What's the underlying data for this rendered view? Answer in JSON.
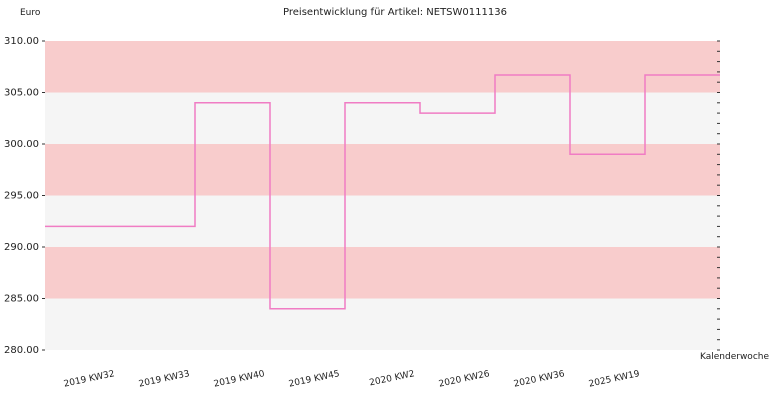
{
  "chart_data": {
    "type": "step-line",
    "title": "Preisentwicklung für Artikel: NETSW0111136",
    "y_label": "Euro",
    "x_label": "Kalenderwoche",
    "categories": [
      "2019 KW32",
      "2019 KW33",
      "2019 KW40",
      "2019 KW45",
      "2020 KW2",
      "2020 KW26",
      "2020 KW36",
      "2025 KW19"
    ],
    "values": [
      292,
      304,
      284,
      304,
      303,
      306.7,
      299,
      306.7
    ],
    "color": "#f07cc4",
    "band_colors": [
      "#f8cccc",
      "#f5f5f5"
    ],
    "ylim": [
      280,
      310
    ],
    "yticks": [
      {
        "value": 280,
        "label": "280.00"
      },
      {
        "value": 285,
        "label": "285.00"
      },
      {
        "value": 290,
        "label": "290.00"
      },
      {
        "value": 295,
        "label": "295.00"
      },
      {
        "value": 300,
        "label": "300.00"
      },
      {
        "value": 305,
        "label": "305.00"
      },
      {
        "value": 310,
        "label": "310.00"
      }
    ]
  }
}
